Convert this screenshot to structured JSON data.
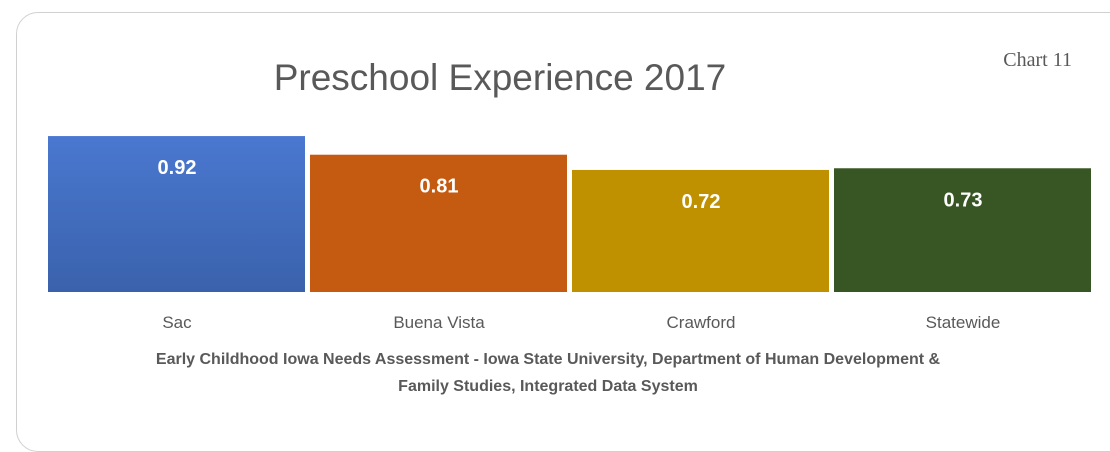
{
  "chart_data": {
    "type": "bar",
    "title": "Preschool Experience 2017",
    "chart_label": "Chart 11",
    "categories": [
      "Sac",
      "Buena Vista",
      "Crawford",
      "Statewide"
    ],
    "values": [
      0.92,
      0.81,
      0.72,
      0.73
    ],
    "colors": [
      "#4472c4",
      "#c55a11",
      "#bf9000",
      "#375623"
    ],
    "ylim": [
      0,
      1
    ],
    "source": "Early Childhood Iowa Needs Assessment - Iowa State University, Department of Human Development & Family Studies, Integrated Data System"
  }
}
